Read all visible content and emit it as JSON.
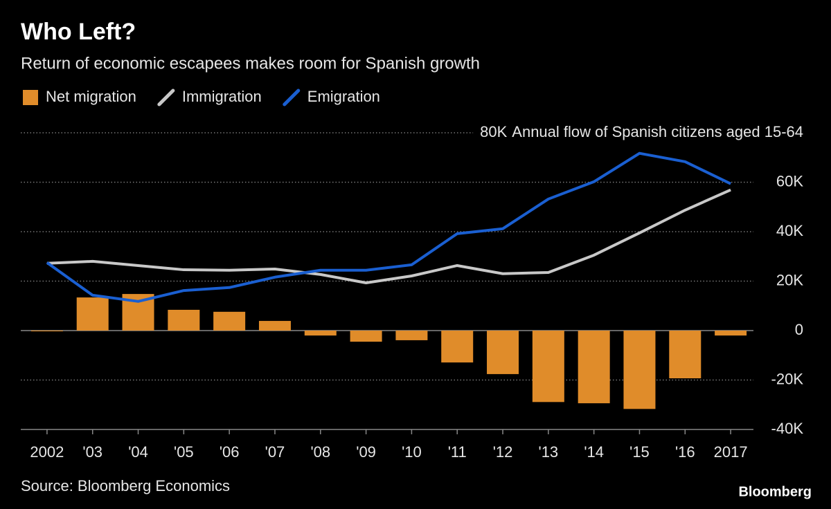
{
  "chart_data": {
    "type": "combo",
    "title": "Who Left?",
    "subtitle": "Return of economic escapees makes room for Spanish growth",
    "y_label": "Annual flow of Spanish citizens aged 15-64",
    "source": "Source: Bloomberg Economics",
    "brand": "Bloomberg",
    "legend": "top-left",
    "grid": true,
    "categories": [
      "2002",
      "'03",
      "'04",
      "'05",
      "'06",
      "'07",
      "'08",
      "'09",
      "'10",
      "'11",
      "'12",
      "'13",
      "'14",
      "'15",
      "'16",
      "2017"
    ],
    "series": [
      {
        "name": "Net migration",
        "type": "bar",
        "color": "#e08c2a",
        "values": [
          -300,
          13400,
          14800,
          8400,
          7600,
          3900,
          -2000,
          -4500,
          -3900,
          -12900,
          -17600,
          -28900,
          -29400,
          -31700,
          -19300,
          -2000
        ]
      },
      {
        "name": "Immigration",
        "type": "line",
        "color": "#c8c8c8",
        "values": [
          27200,
          28000,
          26300,
          24600,
          24400,
          24900,
          22700,
          19300,
          22100,
          26300,
          23000,
          23500,
          30500,
          39500,
          48700,
          56900
        ]
      },
      {
        "name": "Emigration",
        "type": "line",
        "color": "#1a5fd1",
        "values": [
          27500,
          14300,
          11800,
          16200,
          17400,
          21600,
          24400,
          24400,
          26600,
          39200,
          41200,
          53200,
          60200,
          71700,
          68300,
          59400
        ]
      }
    ],
    "ylim": [
      -40000,
      80000
    ],
    "yticks": [
      {
        "value": -40000,
        "label": "-40K"
      },
      {
        "value": -20000,
        "label": "-20K"
      },
      0,
      {
        "value": 20000,
        "label": "20K"
      },
      {
        "value": 40000,
        "label": "40K"
      },
      {
        "value": 60000,
        "label": "60K"
      },
      {
        "value": 80000,
        "label": "80K"
      }
    ]
  }
}
